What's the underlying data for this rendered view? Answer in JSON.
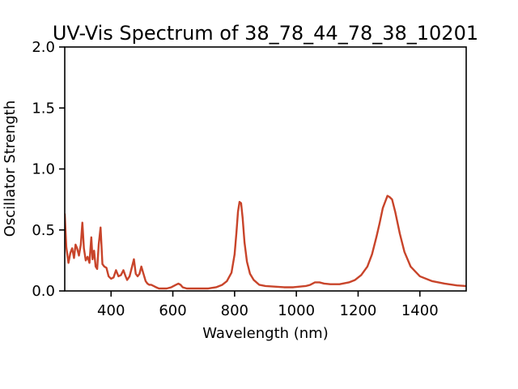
{
  "chart_data": {
    "type": "line",
    "title": "UV-Vis Spectrum of 38_78_44_78_38_10201",
    "xlabel": "Wavelength (nm)",
    "ylabel": "Oscillator Strength",
    "xlim": [
      250,
      1550
    ],
    "ylim": [
      0,
      2.0
    ],
    "xticks": [
      400,
      600,
      800,
      1000,
      1200,
      1400
    ],
    "yticks": [
      0.0,
      0.5,
      1.0,
      1.5,
      2.0
    ],
    "ytick_labels": [
      "0.0",
      "0.5",
      "1.0",
      "1.5",
      "2.0"
    ],
    "grid": false,
    "line_color": "#c8442a",
    "series": [
      {
        "x": [
          250,
          255,
          262,
          268,
          274,
          280,
          285,
          290,
          296,
          302,
          307,
          312,
          318,
          324,
          330,
          336,
          340,
          345,
          350,
          355,
          360,
          366,
          372,
          378,
          385,
          392,
          400,
          408,
          416,
          424,
          432,
          440,
          447,
          452,
          460,
          467,
          474,
          480,
          486,
          492,
          498,
          505,
          512,
          518,
          524,
          530,
          538,
          546,
          555,
          565,
          580,
          595,
          610,
          618,
          625,
          632,
          645,
          665,
          690,
          715,
          740,
          760,
          775,
          790,
          800,
          806,
          811,
          816,
          821,
          826,
          832,
          840,
          850,
          862,
          880,
          900,
          930,
          960,
          990,
          1010,
          1030,
          1045,
          1060,
          1075,
          1090,
          1110,
          1140,
          1170,
          1190,
          1210,
          1230,
          1245,
          1260,
          1270,
          1280,
          1289,
          1295,
          1302,
          1310,
          1320,
          1335,
          1350,
          1370,
          1400,
          1440,
          1480,
          1520,
          1550
        ],
        "y": [
          0.63,
          0.36,
          0.23,
          0.31,
          0.35,
          0.27,
          0.38,
          0.35,
          0.29,
          0.38,
          0.56,
          0.35,
          0.25,
          0.28,
          0.23,
          0.44,
          0.26,
          0.33,
          0.2,
          0.18,
          0.38,
          0.52,
          0.22,
          0.2,
          0.19,
          0.12,
          0.1,
          0.11,
          0.17,
          0.12,
          0.13,
          0.17,
          0.12,
          0.09,
          0.12,
          0.19,
          0.26,
          0.14,
          0.12,
          0.14,
          0.2,
          0.14,
          0.08,
          0.06,
          0.05,
          0.05,
          0.04,
          0.03,
          0.02,
          0.02,
          0.02,
          0.03,
          0.05,
          0.06,
          0.05,
          0.03,
          0.02,
          0.02,
          0.02,
          0.02,
          0.03,
          0.05,
          0.08,
          0.15,
          0.3,
          0.48,
          0.65,
          0.73,
          0.72,
          0.6,
          0.4,
          0.24,
          0.14,
          0.09,
          0.05,
          0.04,
          0.035,
          0.03,
          0.03,
          0.035,
          0.04,
          0.05,
          0.07,
          0.07,
          0.06,
          0.055,
          0.055,
          0.07,
          0.09,
          0.13,
          0.2,
          0.3,
          0.45,
          0.56,
          0.68,
          0.74,
          0.78,
          0.77,
          0.75,
          0.65,
          0.47,
          0.32,
          0.2,
          0.12,
          0.08,
          0.06,
          0.045,
          0.04
        ]
      }
    ]
  }
}
